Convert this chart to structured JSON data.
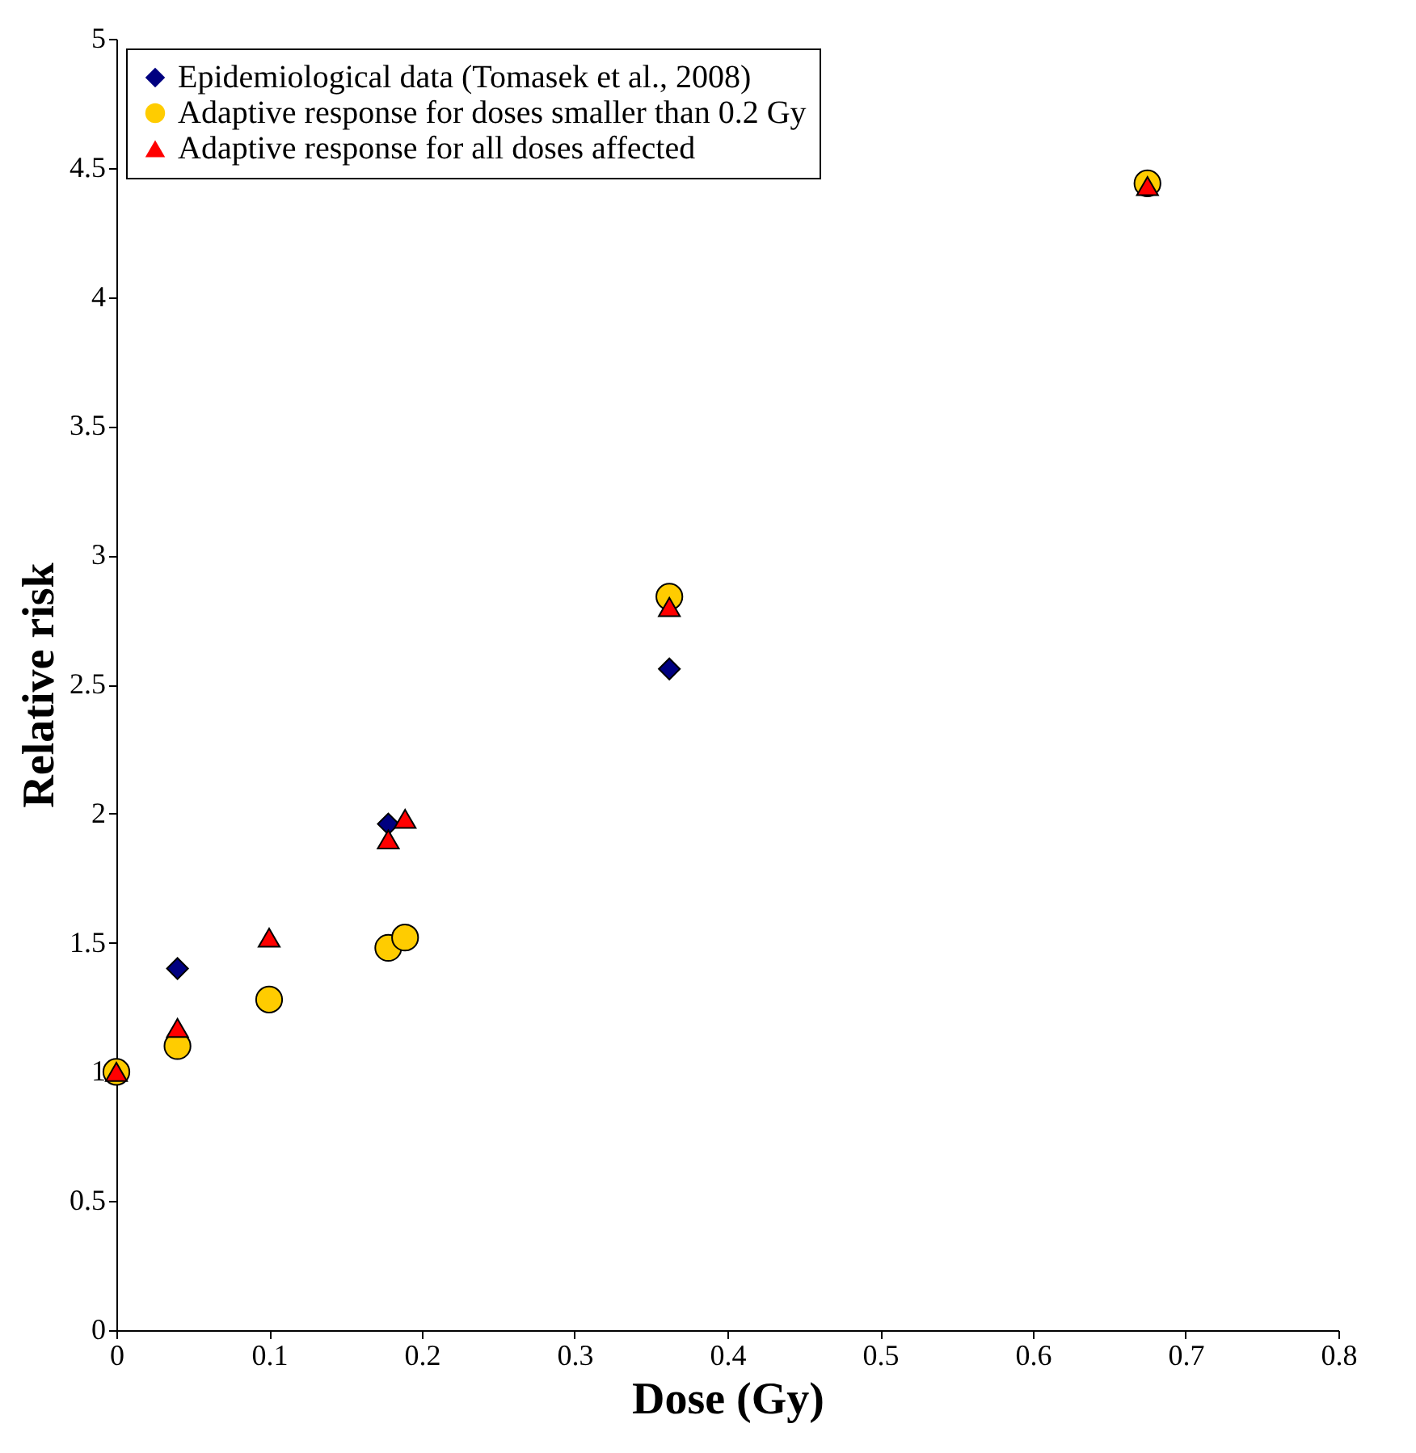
{
  "chart_data": {
    "type": "scatter",
    "xlabel": "Dose (Gy)",
    "ylabel": "Relative risk",
    "series": [
      {
        "name": "Epidemiological data (Tomasek et al., 2008)",
        "color": "#000080",
        "marker": "diamond",
        "x": [
          0.04,
          0.178,
          0.362
        ],
        "values": [
          1.4,
          1.96,
          2.56
        ]
      },
      {
        "name": "Adaptive response for doses smaller than 0.2 Gy",
        "color": "#ffcc00",
        "marker": "circle",
        "x": [
          0,
          0.04,
          0.1,
          0.178,
          0.189,
          0.362,
          0.675
        ],
        "values": [
          1.0,
          1.1,
          1.28,
          1.48,
          1.52,
          2.84,
          4.44
        ]
      },
      {
        "name": "Adaptive response for all doses affected",
        "color": "#ff0000",
        "marker": "triangle",
        "x": [
          0,
          0.04,
          0.1,
          0.178,
          0.189,
          0.362,
          0.675
        ],
        "values": [
          1.0,
          1.17,
          1.52,
          1.9,
          1.98,
          2.8,
          4.43
        ]
      }
    ],
    "xlim": [
      0,
      0.8
    ],
    "xticks": [
      0,
      0.1,
      0.2,
      0.3,
      0.4,
      0.5,
      0.6,
      0.7,
      0.8
    ],
    "ylim": [
      0,
      5
    ],
    "yticks": [
      0,
      0.5,
      1,
      1.5,
      2,
      2.5,
      3,
      3.5,
      4,
      4.5,
      5
    ],
    "grid": false,
    "legend": "top left"
  }
}
